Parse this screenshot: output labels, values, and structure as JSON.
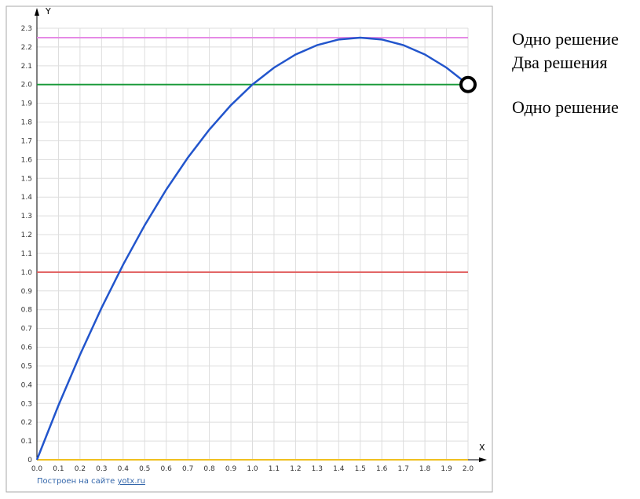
{
  "chart_data": {
    "type": "line",
    "x_label": "X",
    "y_label": "Y",
    "x": [
      0,
      0.1,
      0.2,
      0.3,
      0.4,
      0.5,
      0.6,
      0.7,
      0.8,
      0.9,
      1,
      1.1,
      1.2,
      1.3,
      1.4,
      1.5,
      1.6,
      1.7,
      1.8,
      1.9,
      2
    ],
    "series": [
      {
        "color": "#2255cc",
        "values": [
          0,
          0.29,
          0.56,
          0.81,
          1.04,
          1.25,
          1.44,
          1.61,
          1.76,
          1.89,
          2.0,
          2.09,
          2.16,
          2.21,
          2.24,
          2.25,
          2.24,
          2.21,
          2.16,
          2.09,
          2.0
        ]
      }
    ],
    "hlines": [
      {
        "value": 2.25,
        "color": "#e68ae6"
      },
      {
        "value": 2.0,
        "color": "#1a9a3a"
      },
      {
        "value": 1.0,
        "color": "#e05a5a"
      },
      {
        "value": 0,
        "color": "#f0c020"
      }
    ],
    "open_point": {
      "x": 2,
      "y": 2
    },
    "xlim": [
      0,
      2
    ],
    "ylim": [
      0,
      2.3
    ],
    "xticks": [
      {
        "value": 0,
        "label": "0.0"
      },
      0.1,
      0.2,
      0.3,
      0.4,
      0.5,
      0.6,
      0.7,
      0.8,
      0.9,
      {
        "value": 1,
        "label": "1.0"
      },
      1.1,
      1.2,
      1.3,
      1.4,
      1.5,
      1.6,
      1.7,
      1.8,
      1.9,
      {
        "value": 2,
        "label": "2.0"
      }
    ],
    "yticks": [
      0,
      0.1,
      0.2,
      0.3,
      0.4,
      0.5,
      0.6,
      0.7,
      0.8,
      0.9,
      {
        "value": 1,
        "label": "1.0"
      },
      1.1,
      1.2,
      1.3,
      1.4,
      1.5,
      1.6,
      1.7,
      1.8,
      1.9,
      {
        "value": 2,
        "label": "2.0"
      },
      2.1,
      2.2,
      2.3
    ],
    "grid": true,
    "credit": "Построен на сайте",
    "credit_link": "yotx.ru",
    "annotations": [
      "Одно решение",
      "Два решения",
      "Одно решение"
    ]
  }
}
